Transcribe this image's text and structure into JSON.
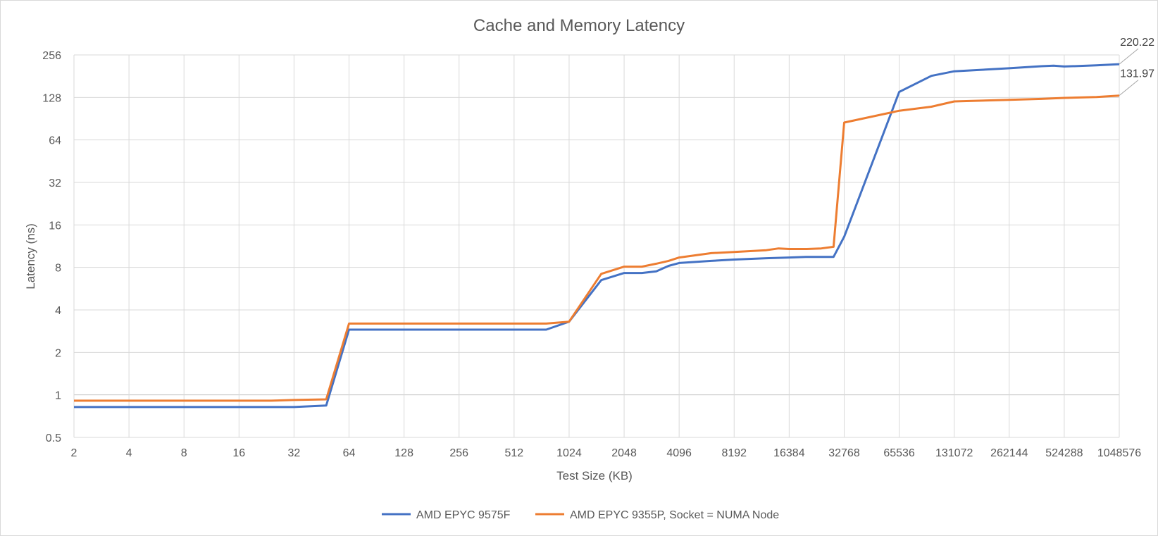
{
  "chart_data": {
    "type": "line",
    "title": "Cache and Memory Latency",
    "xlabel": "Test Size (KB)",
    "ylabel": "Latency (ns)",
    "x_scale": "log2",
    "y_scale": "log2",
    "xlim": [
      2,
      1048576
    ],
    "ylim": [
      0.5,
      256
    ],
    "grid": true,
    "legend_position": "bottom",
    "x_ticks": [
      2,
      4,
      8,
      16,
      32,
      64,
      128,
      256,
      512,
      1024,
      2048,
      4096,
      8192,
      16384,
      32768,
      65536,
      131072,
      262144,
      524288,
      1048576
    ],
    "y_ticks": [
      0.5,
      1,
      2,
      4,
      8,
      16,
      32,
      64,
      128,
      256
    ],
    "series": [
      {
        "name": "AMD EPYC 9575F",
        "color": "#4472C4",
        "x": [
          2,
          4,
          8,
          16,
          24,
          32,
          48,
          64,
          96,
          128,
          256,
          512,
          768,
          1024,
          1536,
          2048,
          2560,
          3072,
          3584,
          4096,
          6144,
          8192,
          12288,
          16384,
          20480,
          24576,
          28672,
          32768,
          65536,
          98304,
          131072,
          262144,
          393216,
          458752,
          524288,
          786432,
          1048576
        ],
        "y": [
          0.82,
          0.82,
          0.82,
          0.82,
          0.82,
          0.82,
          0.84,
          2.9,
          2.9,
          2.9,
          2.9,
          2.9,
          2.9,
          3.3,
          6.5,
          7.3,
          7.3,
          7.5,
          8.2,
          8.6,
          8.9,
          9.1,
          9.3,
          9.4,
          9.5,
          9.5,
          9.5,
          13.2,
          140,
          182,
          196,
          206,
          213,
          215,
          212,
          216,
          220.22
        ],
        "end_label": "220.22"
      },
      {
        "name": "AMD EPYC 9355P, Socket = NUMA Node",
        "color": "#ED7D31",
        "x": [
          2,
          4,
          8,
          16,
          24,
          32,
          48,
          64,
          96,
          128,
          256,
          512,
          768,
          1024,
          1536,
          2048,
          2560,
          3072,
          3584,
          4096,
          6144,
          8192,
          12288,
          14336,
          16384,
          20480,
          24576,
          28672,
          32768,
          65536,
          98304,
          131072,
          262144,
          393216,
          524288,
          786432,
          1048576
        ],
        "y": [
          0.91,
          0.91,
          0.91,
          0.91,
          0.91,
          0.92,
          0.93,
          3.2,
          3.2,
          3.2,
          3.2,
          3.2,
          3.2,
          3.3,
          7.2,
          8.1,
          8.1,
          8.5,
          8.9,
          9.4,
          10.1,
          10.3,
          10.6,
          10.9,
          10.8,
          10.8,
          10.9,
          11.2,
          85,
          103,
          110,
          120,
          123,
          125,
          127,
          129,
          131.97
        ],
        "end_label": "131.97"
      }
    ]
  }
}
